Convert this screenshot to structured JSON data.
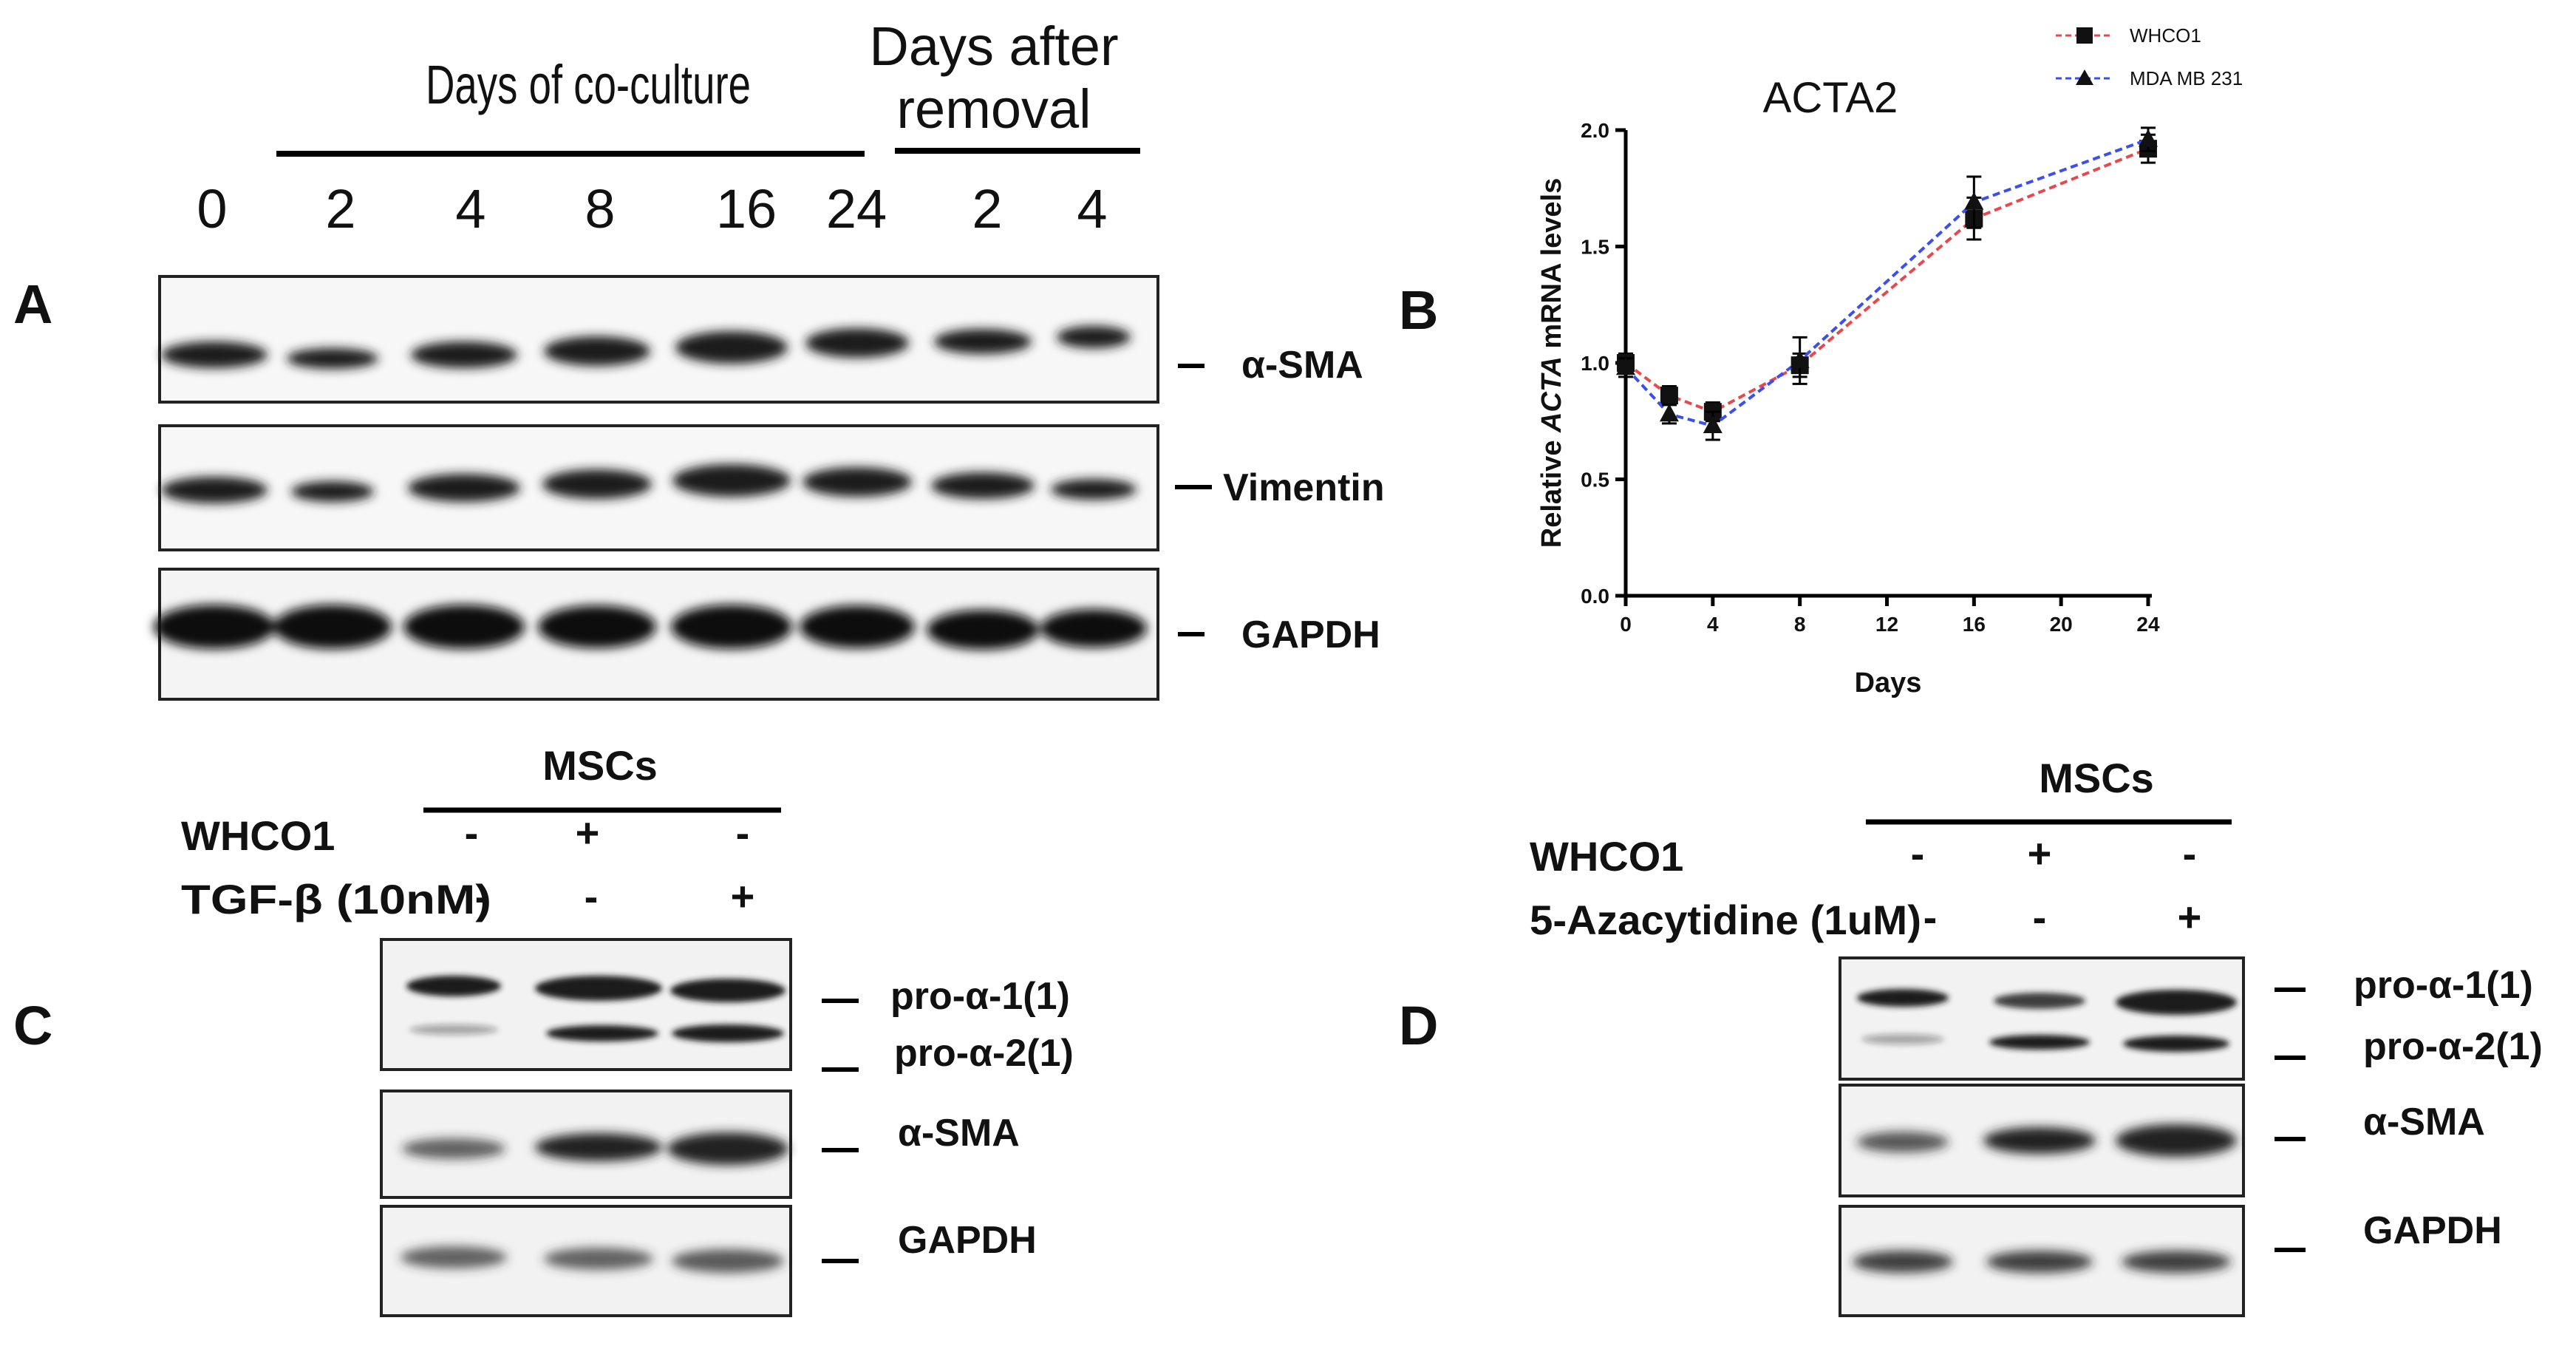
{
  "panels": {
    "A": "A",
    "B": "B",
    "C": "C",
    "D": "D"
  },
  "panel_a": {
    "group1": "Days of co-culture",
    "group2_line1": "Days after",
    "group2_line2": "removal",
    "lanes": [
      "0",
      "2",
      "4",
      "8",
      "16",
      "24",
      "2",
      "4"
    ],
    "bands": [
      "α-SMA",
      "Vimentin",
      "GAPDH"
    ]
  },
  "panel_c": {
    "group": "MSCs",
    "rows": [
      {
        "label": "WHCO1",
        "signs": [
          "-",
          "+",
          "-"
        ]
      },
      {
        "label": "TGF-β (10nM)",
        "signs": [
          "-",
          "-",
          "+"
        ]
      }
    ],
    "bands": [
      "pro-α-1(1)",
      "pro-α-2(1)",
      "α-SMA",
      "GAPDH"
    ]
  },
  "panel_d": {
    "group": "MSCs",
    "rows": [
      {
        "label": "WHCO1",
        "signs": [
          "-",
          "+",
          "-"
        ]
      },
      {
        "label": "5-Azacytidine (1uM)",
        "signs": [
          "-",
          "-",
          "+"
        ]
      }
    ],
    "bands": [
      "pro-α-1(1)",
      "pro-α-2(1)",
      "α-SMA",
      "GAPDH"
    ]
  },
  "chart_data": {
    "type": "line",
    "title": "ACTA2",
    "xlabel": "Days",
    "ylabel_parts": [
      "Relative ",
      "ACTA",
      " mRNA levels"
    ],
    "xlim": [
      0,
      24
    ],
    "ylim": [
      0,
      2.0
    ],
    "xticks": [
      0,
      4,
      8,
      12,
      16,
      20,
      24
    ],
    "yticks": [
      0.0,
      0.5,
      1.0,
      1.5,
      2.0
    ],
    "ytick_labels": [
      "0.0",
      "0.5",
      "1.0",
      "1.5",
      "2.0"
    ],
    "grid": false,
    "legend_position": "top-right",
    "series": [
      {
        "name": "WHCO1",
        "marker": "square",
        "color": "#e8484c",
        "x": [
          0,
          2,
          4,
          8,
          16,
          24
        ],
        "y": [
          1.0,
          0.86,
          0.79,
          0.99,
          1.62,
          1.92
        ],
        "err": [
          0.04,
          0.04,
          0.04,
          0.05,
          0.09,
          0.06
        ]
      },
      {
        "name": "MDA MB 231",
        "marker": "triangle",
        "color": "#3b4ff0",
        "x": [
          0,
          2,
          4,
          8,
          16,
          24
        ],
        "y": [
          0.98,
          0.78,
          0.73,
          1.01,
          1.69,
          1.96
        ],
        "err": [
          0.04,
          0.04,
          0.06,
          0.1,
          0.11,
          0.05
        ]
      }
    ]
  }
}
